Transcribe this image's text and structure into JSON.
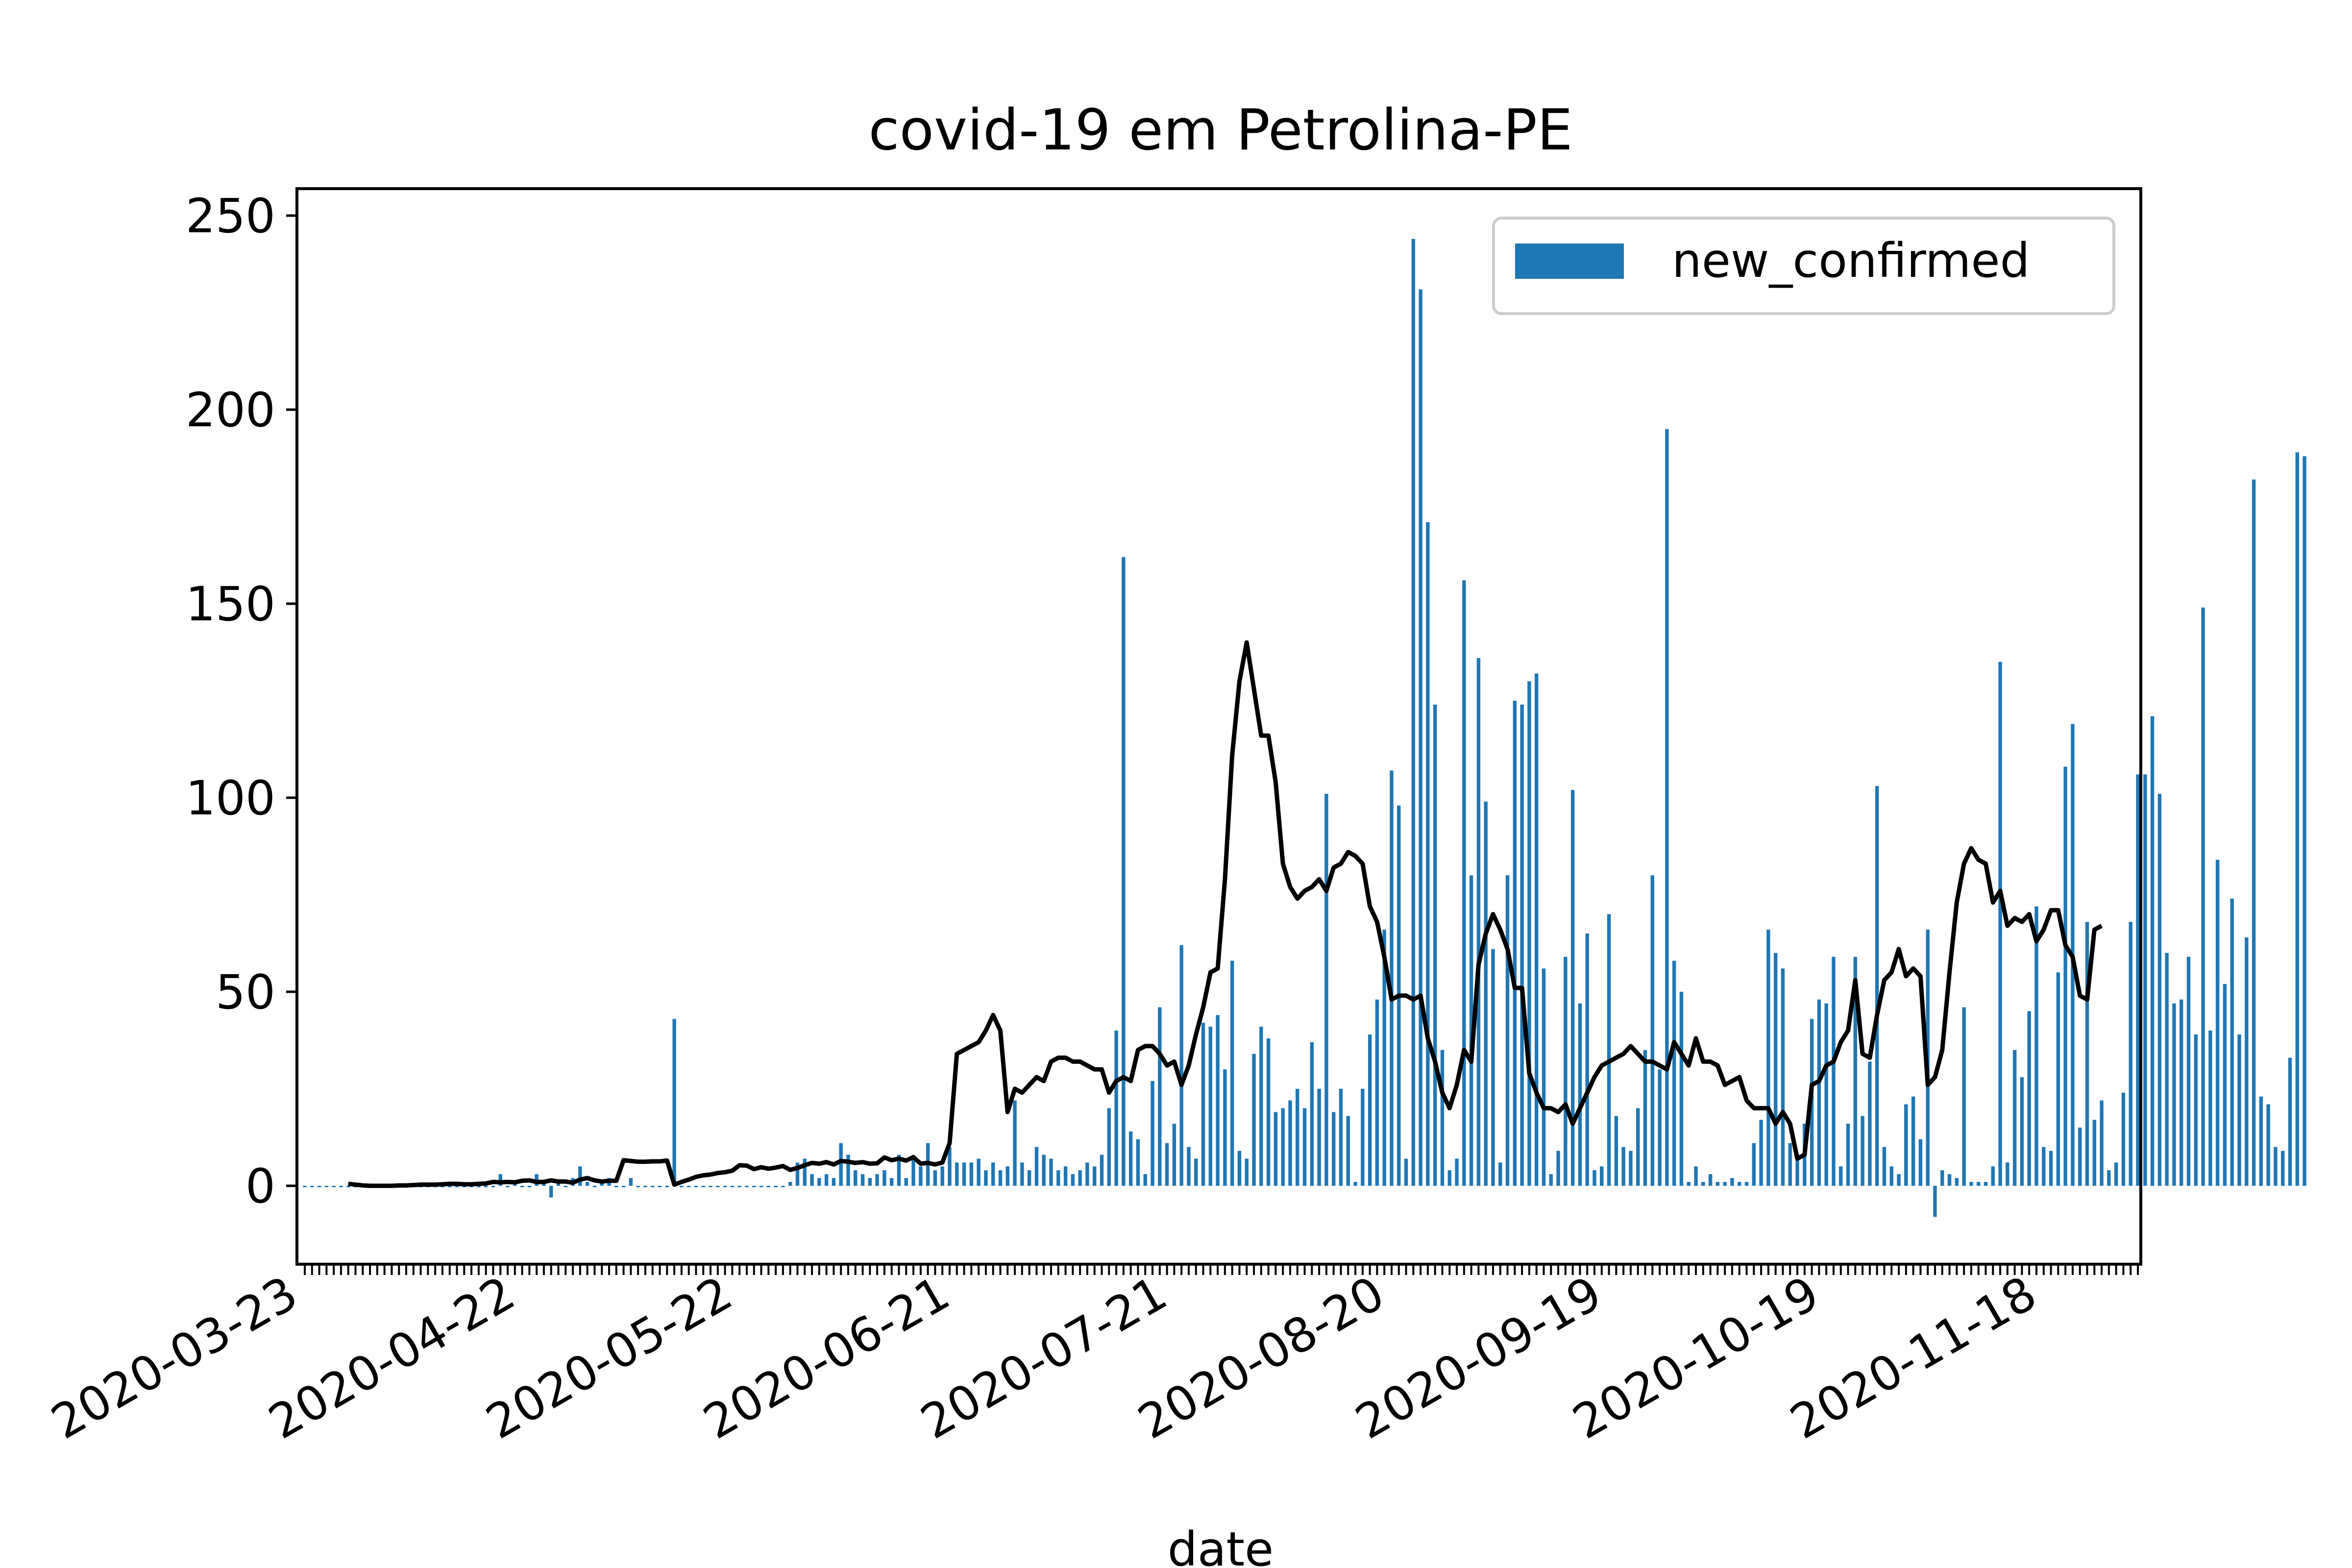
{
  "chart_data": {
    "type": "bar",
    "title": "covid-19 em Petrolina-PE",
    "xlabel": "date",
    "ylabel": "",
    "ylim": [
      -20,
      250
    ],
    "yticks": [
      0,
      50,
      100,
      150,
      200,
      250
    ],
    "x_start": "2020-03-23",
    "x_end": "2020-12-01",
    "xtick_labels": [
      "2020-03-23",
      "2020-04-22",
      "2020-05-22",
      "2020-06-21",
      "2020-07-21",
      "2020-08-20",
      "2020-09-19",
      "2020-10-19",
      "2020-11-18"
    ],
    "legend": {
      "position": "upper-right",
      "entries": [
        "new_confirmed"
      ]
    },
    "colors": {
      "bars": "#1f77b4",
      "line": "#000000"
    },
    "series": [
      {
        "name": "new_confirmed",
        "type": "bar",
        "values": [
          0,
          0,
          0,
          0,
          0,
          0,
          0,
          0,
          0,
          0,
          0,
          0,
          0,
          0,
          0,
          0,
          0,
          0,
          0,
          0,
          0,
          0,
          0,
          0,
          0,
          0,
          0,
          3,
          0,
          1,
          0,
          0,
          3,
          1,
          -3,
          1,
          0,
          2,
          5,
          1,
          0,
          1,
          2,
          0,
          0,
          2,
          0,
          0,
          0,
          0,
          0,
          43,
          0,
          0,
          0,
          0,
          0,
          0,
          0,
          0,
          0,
          0,
          0,
          0,
          0,
          0,
          0,
          1,
          6,
          7,
          3,
          2,
          3,
          2,
          11,
          8,
          4,
          3,
          2,
          3,
          4,
          2,
          8,
          2,
          7,
          5,
          11,
          4,
          5,
          10,
          6,
          6,
          6,
          7,
          4,
          6,
          4,
          5,
          22,
          6,
          4,
          10,
          8,
          7,
          4,
          5,
          3,
          4,
          6,
          5,
          8,
          20,
          40,
          162,
          14,
          12,
          3,
          27,
          46,
          11,
          16,
          62,
          10,
          7,
          42,
          41,
          44,
          30,
          58,
          9,
          7,
          34,
          41,
          38,
          19,
          20,
          22,
          25,
          20,
          37,
          25,
          101,
          19,
          25,
          18,
          1,
          25,
          39,
          48,
          66,
          107,
          98,
          7,
          244,
          231,
          171,
          124,
          35,
          4,
          7,
          156,
          80,
          136,
          99,
          61,
          6,
          80,
          125,
          124,
          130,
          132,
          56,
          3,
          9,
          59,
          102,
          47,
          65,
          4,
          5,
          70,
          18,
          10,
          9,
          20,
          35,
          80,
          30,
          195,
          58,
          50,
          1,
          5,
          1,
          3,
          1,
          1,
          2,
          1,
          1,
          11,
          17,
          66,
          60,
          56,
          11,
          8,
          16,
          43,
          48,
          47,
          59,
          5,
          16,
          59,
          18,
          32,
          103,
          10,
          5,
          3,
          21,
          23,
          12,
          66,
          -8,
          4,
          3,
          2,
          46,
          1,
          1,
          1,
          5,
          135,
          6,
          35,
          28,
          45,
          72,
          10,
          9,
          55,
          108,
          119,
          15,
          68,
          17,
          22,
          4,
          6,
          24,
          68,
          106,
          106,
          121,
          101,
          60,
          47,
          48,
          59,
          39,
          149,
          40,
          84,
          52,
          74,
          39,
          64,
          182,
          23,
          21,
          10,
          9,
          33,
          189,
          188
        ]
      },
      {
        "name": "",
        "type": "line",
        "values": [
          null,
          null,
          null,
          null,
          null,
          null,
          0.5,
          0.3,
          0.1,
          0,
          0,
          0,
          0,
          0.1,
          0.1,
          0.2,
          0.3,
          0.3,
          0.3,
          0.4,
          0.5,
          0.5,
          0.4,
          0.4,
          0.5,
          0.6,
          1,
          0.9,
          1,
          0.9,
          1.3,
          1.4,
          1,
          1,
          1.4,
          1.1,
          1.1,
          0.8,
          1.6,
          2,
          1.4,
          1.1,
          1.3,
          1.3,
          6.6,
          6.4,
          6.2,
          6.2,
          6.3,
          6.3,
          6.5,
          0.3,
          1,
          1.6,
          2.3,
          2.7,
          2.9,
          3.3,
          3.5,
          3.9,
          5.3,
          5.2,
          4.3,
          4.8,
          4.4,
          4.7,
          5.1,
          4.1,
          4.6,
          5.3,
          5.9,
          5.7,
          6.1,
          5.5,
          6.4,
          6.2,
          5.9,
          6.1,
          5.7,
          5.8,
          7.3,
          6.6,
          7,
          6.5,
          7.4,
          5.7,
          5.9,
          5.5,
          6,
          11,
          34,
          35,
          36,
          37,
          40,
          44,
          40,
          19,
          25,
          24,
          26,
          28,
          27,
          32,
          33,
          33,
          32,
          32,
          31,
          30,
          30,
          24,
          27,
          28,
          27,
          35,
          36,
          36,
          34,
          31,
          32,
          26,
          31,
          39,
          46,
          55,
          56,
          79,
          111,
          130,
          140,
          128,
          116,
          116,
          104,
          83,
          77,
          74,
          76,
          77,
          79,
          76,
          82,
          83,
          86,
          85,
          83,
          72,
          68,
          59,
          48,
          49,
          49,
          48,
          49,
          38,
          32,
          24,
          20,
          26,
          35,
          32,
          57,
          65,
          70,
          66,
          61,
          51,
          51,
          29,
          24,
          20,
          20,
          19,
          21,
          16,
          20,
          24,
          28,
          31,
          32,
          33,
          34,
          36,
          34,
          32,
          32,
          31,
          30,
          37,
          34,
          31,
          38,
          32,
          32,
          31,
          26,
          27,
          28,
          22,
          20,
          20,
          20,
          16,
          19,
          16,
          7,
          8,
          26,
          27,
          31,
          32,
          37,
          40,
          53,
          34,
          33,
          44,
          53,
          55,
          61,
          54,
          56,
          54,
          26,
          28,
          35,
          55,
          73,
          83,
          87,
          84,
          83,
          73,
          76,
          67,
          69,
          68,
          70,
          63,
          66,
          71,
          71,
          62,
          59,
          49,
          48,
          66,
          67
        ]
      }
    ]
  }
}
